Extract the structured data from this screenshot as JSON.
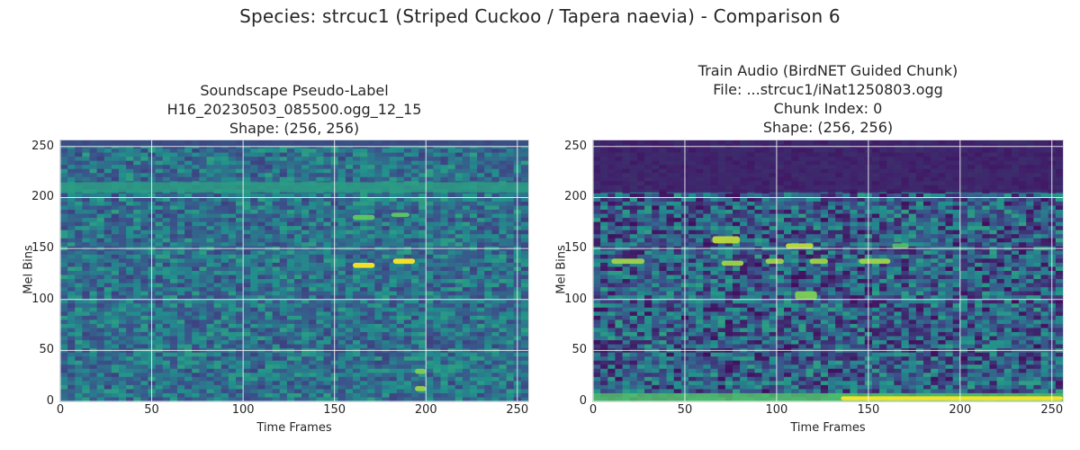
{
  "figure": {
    "suptitle": "Species: strcuc1 (Striped Cuckoo / Tapera naevia) - Comparison 6"
  },
  "colors": {
    "viridis_dark": "#440154",
    "viridis_blue": "#3b528b",
    "viridis_teal": "#21918c",
    "viridis_green": "#5ec962",
    "viridis_yellow": "#fde725",
    "grid": "#ffffff"
  },
  "chart_data": [
    {
      "type": "heatmap",
      "title_lines": [
        "Soundscape Pseudo-Label",
        "H16_20230503_085500.ogg_12_15",
        "Shape: (256, 256)"
      ],
      "xlabel": "Time Frames",
      "ylabel": "Mel Bins",
      "xlim": [
        0,
        256
      ],
      "ylim": [
        0,
        256
      ],
      "xticks": [
        0,
        50,
        100,
        150,
        200,
        250
      ],
      "yticks": [
        0,
        50,
        100,
        150,
        200,
        250
      ],
      "grid": true,
      "colormap": "viridis",
      "features": [
        {
          "kind": "band",
          "y": [
            205,
            215
          ],
          "level": 0.55
        },
        {
          "kind": "band",
          "y": [
            250,
            256
          ],
          "level": 0.22
        },
        {
          "kind": "blob",
          "x": [
            160,
            172
          ],
          "y": [
            131,
            136
          ],
          "level": 1.0
        },
        {
          "kind": "blob",
          "x": [
            182,
            194
          ],
          "y": [
            135,
            140
          ],
          "level": 1.0
        },
        {
          "kind": "blob",
          "x": [
            160,
            172
          ],
          "y": [
            178,
            183
          ],
          "level": 0.75
        },
        {
          "kind": "blob",
          "x": [
            181,
            191
          ],
          "y": [
            181,
            185
          ],
          "level": 0.75
        },
        {
          "kind": "blob",
          "x": [
            194,
            200
          ],
          "y": [
            27,
            32
          ],
          "level": 0.8
        },
        {
          "kind": "blob",
          "x": [
            194,
            200
          ],
          "y": [
            10,
            15
          ],
          "level": 0.85
        }
      ]
    },
    {
      "type": "heatmap",
      "title_lines": [
        "Train Audio (BirdNET Guided Chunk)",
        "File: ...strcuc1/iNat1250803.ogg",
        "Chunk Index: 0",
        "Shape: (256, 256)"
      ],
      "xlabel": "Time Frames",
      "ylabel": "Mel Bins",
      "xlim": [
        0,
        256
      ],
      "ylim": [
        0,
        256
      ],
      "xticks": [
        0,
        50,
        100,
        150,
        200,
        250
      ],
      "yticks": [
        0,
        50,
        100,
        150,
        200,
        250
      ],
      "grid": true,
      "colormap": "viridis",
      "features": [
        {
          "kind": "band",
          "y": [
            205,
            256
          ],
          "level": 0.08
        },
        {
          "kind": "band",
          "y": [
            0,
            8
          ],
          "level": 0.7
        },
        {
          "kind": "blob",
          "x": [
            135,
            256
          ],
          "y": [
            1,
            5
          ],
          "level": 1.0
        },
        {
          "kind": "blob",
          "x": [
            10,
            28
          ],
          "y": [
            135,
            140
          ],
          "level": 0.85
        },
        {
          "kind": "blob",
          "x": [
            65,
            80
          ],
          "y": [
            155,
            162
          ],
          "level": 0.9
        },
        {
          "kind": "blob",
          "x": [
            70,
            82
          ],
          "y": [
            133,
            138
          ],
          "level": 0.85
        },
        {
          "kind": "blob",
          "x": [
            94,
            104
          ],
          "y": [
            135,
            140
          ],
          "level": 0.85
        },
        {
          "kind": "blob",
          "x": [
            105,
            120
          ],
          "y": [
            150,
            155
          ],
          "level": 0.9
        },
        {
          "kind": "blob",
          "x": [
            110,
            122
          ],
          "y": [
            100,
            108
          ],
          "level": 0.8
        },
        {
          "kind": "blob",
          "x": [
            118,
            128
          ],
          "y": [
            135,
            140
          ],
          "level": 0.85
        },
        {
          "kind": "blob",
          "x": [
            145,
            162
          ],
          "y": [
            135,
            140
          ],
          "level": 0.85
        },
        {
          "kind": "blob",
          "x": [
            163,
            172
          ],
          "y": [
            150,
            155
          ],
          "level": 0.7
        }
      ]
    }
  ]
}
